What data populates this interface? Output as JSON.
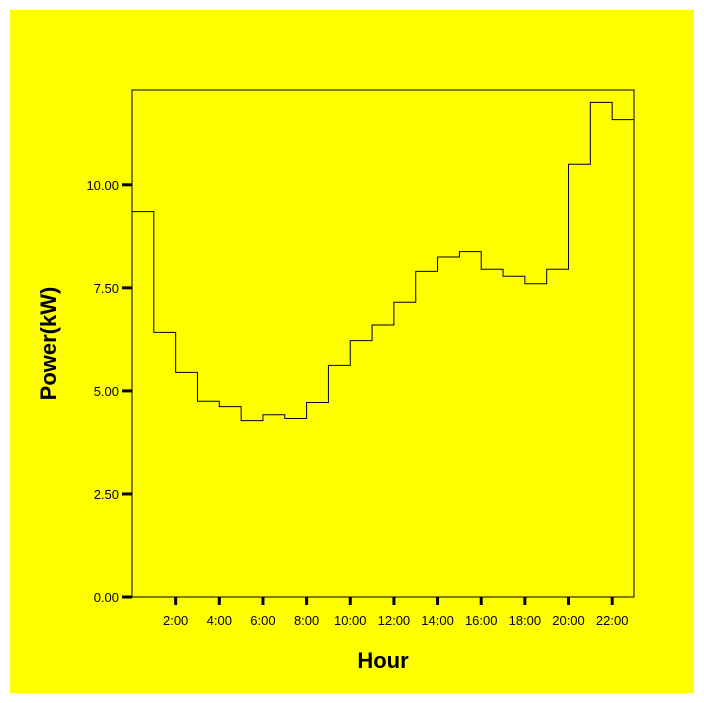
{
  "chart_data": {
    "type": "line",
    "step": true,
    "title": "",
    "xlabel": "Hour",
    "ylabel": "Power(kW)",
    "ylim": [
      0,
      12.3
    ],
    "xlim": [
      0,
      23
    ],
    "y_ticks": [
      "0.00",
      "2.50",
      "5.00",
      "7.50",
      "10.00"
    ],
    "y_tick_values": [
      0,
      2.5,
      5,
      7.5,
      10
    ],
    "x_tick_labels": [
      "2:00",
      "4:00",
      "6:00",
      "8:00",
      "10:00",
      "12:00",
      "14:00",
      "16:00",
      "18:00",
      "20:00",
      "22:00"
    ],
    "x_tick_values": [
      2,
      4,
      6,
      8,
      10,
      12,
      14,
      16,
      18,
      20,
      22
    ],
    "grid": false,
    "background_color": "#ffff00",
    "line_color": "#000000",
    "series": [
      {
        "hours": [
          0,
          1,
          2,
          3,
          4,
          5,
          6,
          7,
          8,
          9,
          10,
          11,
          12,
          13,
          14,
          15,
          16,
          17,
          18,
          19,
          20,
          21,
          22,
          23
        ],
        "values": [
          9.35,
          6.42,
          5.45,
          4.75,
          4.62,
          4.28,
          4.42,
          4.33,
          4.72,
          5.62,
          6.22,
          6.6,
          7.15,
          7.9,
          8.25,
          8.38,
          7.95,
          7.78,
          7.6,
          7.95,
          10.5,
          12.0,
          11.58,
          10.7
        ]
      }
    ]
  }
}
